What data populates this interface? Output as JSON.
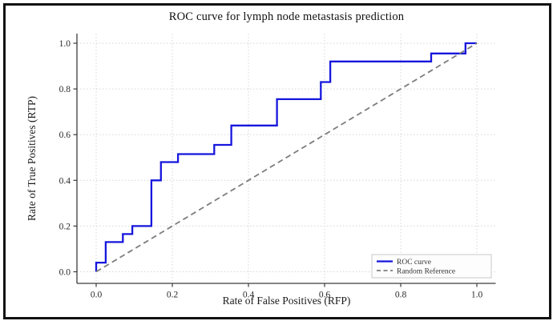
{
  "figure": {
    "border_color": "#111111",
    "background": "#ffffff"
  },
  "chart_data": {
    "type": "line",
    "title": "ROC curve for lymph node metastasis prediction",
    "xlabel": "Rate of False Positives (RFP)",
    "ylabel": "Rate of True Positives (RTP)",
    "xlim": [
      -0.05,
      1.05
    ],
    "ylim": [
      -0.05,
      1.05
    ],
    "grid": "dotted",
    "x_ticks": {
      "values": [
        0,
        0.2,
        0.4,
        0.6,
        0.8,
        1.0
      ],
      "labels": [
        "0.0",
        "0.2",
        "0.4",
        "0.6",
        "0.8",
        "1.0"
      ]
    },
    "y_ticks": {
      "values": [
        0,
        0.2,
        0.4,
        0.6,
        0.8,
        1.0
      ],
      "labels": [
        "0.0",
        "0.2",
        "0.4",
        "0.6",
        "0.8",
        "1.0"
      ]
    },
    "legend": {
      "position": "lower right",
      "entries": [
        {
          "label": "ROC curve",
          "style": "solid",
          "color": "#1616dd"
        },
        {
          "label": "Random Reference",
          "style": "dashed",
          "color": "#7d7d7d"
        }
      ]
    },
    "series": [
      {
        "name": "ROC curve",
        "type": "step",
        "style": "solid",
        "color": "#1616dd",
        "points": [
          [
            0,
            0
          ],
          [
            0,
            0.04
          ],
          [
            0.025,
            0.04
          ],
          [
            0.025,
            0.13
          ],
          [
            0.07,
            0.13
          ],
          [
            0.07,
            0.165
          ],
          [
            0.095,
            0.165
          ],
          [
            0.095,
            0.2
          ],
          [
            0.145,
            0.2
          ],
          [
            0.145,
            0.4
          ],
          [
            0.17,
            0.4
          ],
          [
            0.17,
            0.48
          ],
          [
            0.215,
            0.48
          ],
          [
            0.215,
            0.515
          ],
          [
            0.31,
            0.515
          ],
          [
            0.31,
            0.555
          ],
          [
            0.355,
            0.555
          ],
          [
            0.355,
            0.64
          ],
          [
            0.475,
            0.64
          ],
          [
            0.475,
            0.755
          ],
          [
            0.59,
            0.755
          ],
          [
            0.59,
            0.83
          ],
          [
            0.615,
            0.83
          ],
          [
            0.615,
            0.92
          ],
          [
            0.88,
            0.92
          ],
          [
            0.88,
            0.955
          ],
          [
            0.97,
            0.955
          ],
          [
            0.97,
            1.0
          ],
          [
            1.0,
            1.0
          ]
        ]
      },
      {
        "name": "Random Reference",
        "type": "line",
        "style": "dashed",
        "color": "#7d7d7d",
        "points": [
          [
            0,
            0
          ],
          [
            1,
            1
          ]
        ]
      }
    ],
    "colors": {
      "grid": "#d6d6d6",
      "spine": "#3c3c3c",
      "tick_label": "#2a2a2a",
      "legend_border": "#c9c9c9",
      "legend_fill": "#fdfdfd"
    }
  }
}
